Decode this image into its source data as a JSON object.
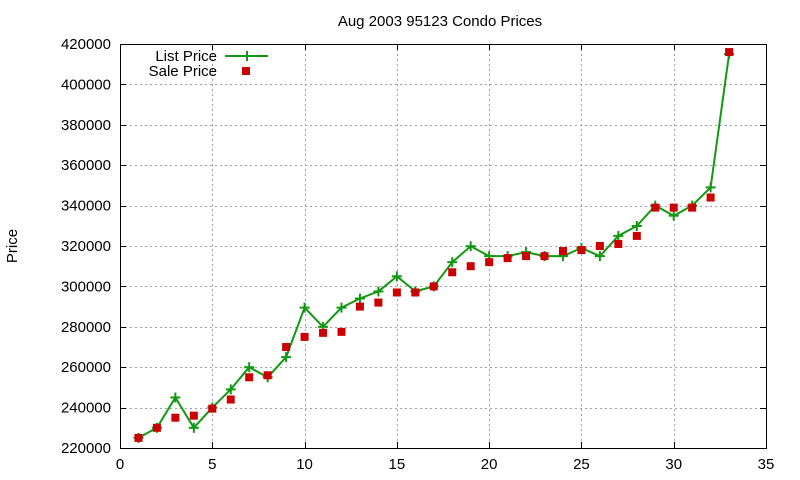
{
  "chart_data": {
    "type": "line",
    "title": "Aug 2003 95123 Condo Prices",
    "xlabel": "",
    "ylabel": "Price",
    "xlim": [
      0,
      35
    ],
    "ylim": [
      220000,
      420000
    ],
    "xticks": [
      0,
      5,
      10,
      15,
      20,
      25,
      30,
      35
    ],
    "yticks": [
      220000,
      240000,
      260000,
      280000,
      300000,
      320000,
      340000,
      360000,
      380000,
      400000,
      420000
    ],
    "grid": true,
    "legend_position": "top-left",
    "series": [
      {
        "name": "List Price",
        "style": "line-with-plus-markers",
        "color": "#119911",
        "x": [
          1,
          2,
          3,
          4,
          5,
          6,
          7,
          8,
          9,
          10,
          11,
          12,
          13,
          14,
          15,
          16,
          17,
          18,
          19,
          20,
          21,
          22,
          23,
          24,
          25,
          26,
          27,
          28,
          29,
          30,
          31,
          32,
          33
        ],
        "values": [
          225000,
          230000,
          245000,
          230000,
          240000,
          249000,
          260000,
          255000,
          265000,
          289500,
          280000,
          289500,
          294000,
          297500,
          305000,
          297500,
          300000,
          312000,
          319900,
          315000,
          315000,
          317000,
          315000,
          315000,
          319000,
          315000,
          325000,
          329900,
          340000,
          335000,
          340000,
          349000,
          415000
        ]
      },
      {
        "name": "Sale Price",
        "style": "square-markers",
        "color": "#cc0000",
        "x": [
          1,
          2,
          3,
          4,
          5,
          6,
          7,
          8,
          9,
          10,
          11,
          12,
          13,
          14,
          15,
          16,
          17,
          18,
          19,
          20,
          21,
          22,
          23,
          24,
          25,
          26,
          27,
          28,
          29,
          30,
          31,
          32,
          33
        ],
        "values": [
          225000,
          230000,
          235000,
          236000,
          239500,
          244000,
          255000,
          256000,
          270000,
          275000,
          277000,
          277500,
          290000,
          292000,
          297000,
          297000,
          300000,
          307000,
          310000,
          312000,
          314000,
          315000,
          315000,
          317500,
          318000,
          320000,
          321000,
          325000,
          339000,
          339000,
          339000,
          344000,
          416000
        ]
      }
    ]
  }
}
